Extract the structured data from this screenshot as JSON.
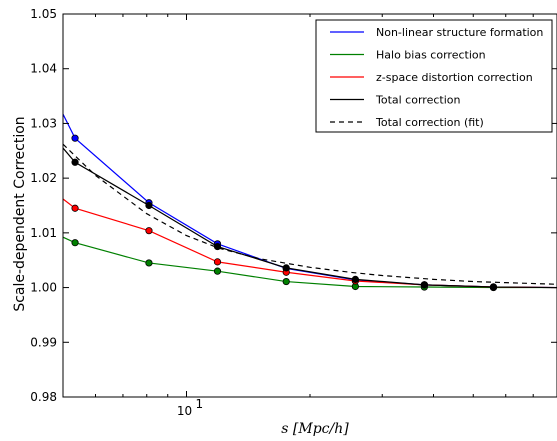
{
  "chart_data": {
    "type": "line",
    "xscale": "log",
    "xlim": [
      5,
      80
    ],
    "ylim": [
      0.98,
      1.05
    ],
    "yticks": [
      0.98,
      0.99,
      1.0,
      1.01,
      1.02,
      1.03,
      1.04,
      1.05
    ],
    "ytick_labels": [
      "0.98",
      "0.99",
      "1.00",
      "1.01",
      "1.02",
      "1.03",
      "1.04",
      "1.05"
    ],
    "xticks": [
      10
    ],
    "xtick_labels": [
      "10"
    ],
    "xtick_superscript": "1",
    "xlabel": "s [Mpc/h]",
    "ylabel": "Scale-dependent Correction",
    "grid": false,
    "legend_position": "top-right",
    "series": [
      {
        "name": "Non-linear structure formation",
        "color": "#0000ff",
        "style": "solid",
        "markers": true,
        "x": [
          5.0,
          5.35,
          8.1,
          11.9,
          17.5,
          25.8,
          38.0,
          56.0,
          80.0
        ],
        "y": [
          1.0317,
          1.0273,
          1.0155,
          1.008,
          1.0035,
          1.0014,
          1.0005,
          1.0001,
          1.0
        ],
        "marker_from": 1,
        "marker_to": 7
      },
      {
        "name": "Halo bias correction",
        "color": "#008000",
        "style": "solid",
        "markers": true,
        "x": [
          5.0,
          5.35,
          8.1,
          11.9,
          17.5,
          25.8,
          38.0,
          56.0,
          80.0
        ],
        "y": [
          1.0092,
          1.0082,
          1.0045,
          1.003,
          1.0011,
          1.0002,
          1.0001,
          1.0,
          1.0
        ],
        "marker_from": 1,
        "marker_to": 7
      },
      {
        "name": "z-space distortion correction",
        "color": "#ff0000",
        "style": "solid",
        "markers": true,
        "x": [
          5.0,
          5.35,
          8.1,
          11.9,
          17.5,
          25.8,
          38.0,
          56.0,
          80.0
        ],
        "y": [
          1.0162,
          1.0145,
          1.0104,
          1.0047,
          1.0028,
          1.0012,
          1.0005,
          1.0001,
          1.0
        ],
        "marker_from": 1,
        "marker_to": 7
      },
      {
        "name": "Total correction",
        "color": "#000000",
        "style": "solid",
        "markers": true,
        "x": [
          5.0,
          5.35,
          8.1,
          11.9,
          17.5,
          25.8,
          38.0,
          56.0,
          80.0
        ],
        "y": [
          1.0255,
          1.0229,
          1.015,
          1.0075,
          1.0036,
          1.0015,
          1.0005,
          1.0001,
          1.0
        ],
        "marker_from": 1,
        "marker_to": 7
      },
      {
        "name": "Total correction (fit)",
        "color": "#000000",
        "style": "dashed",
        "markers": false,
        "x": [
          5.0,
          6.0,
          8.0,
          10.0,
          12.0,
          15.0,
          20.0,
          25.0,
          30.0,
          40.0,
          50.0,
          60.0,
          80.0
        ],
        "y": [
          1.0262,
          1.0205,
          1.0135,
          1.0095,
          1.0072,
          1.0053,
          1.0037,
          1.0028,
          1.0022,
          1.0015,
          1.0011,
          1.0009,
          1.0006
        ]
      }
    ]
  }
}
